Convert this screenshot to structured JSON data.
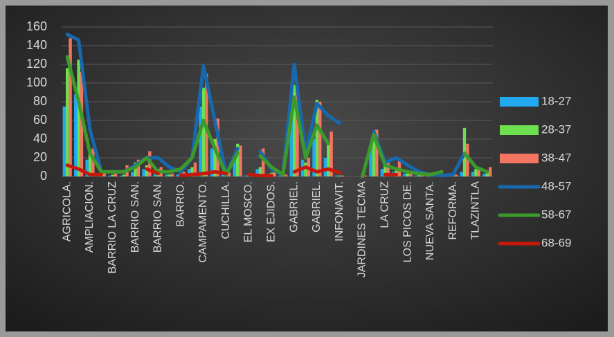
{
  "chart_data": {
    "type": "bar",
    "categories": [
      "AGRICOLA.",
      null,
      "AMPLIACION.",
      null,
      "BARRIO LA CRUZ",
      null,
      "BARRIO SAN.",
      null,
      "BARRIO SAN.",
      null,
      "BARRIO.",
      null,
      "CAMPAMENTO.",
      null,
      "CUCHILLA.",
      null,
      "EL MOSCO.",
      null,
      "EX EJIDOS.",
      null,
      "GABRIEL.",
      null,
      "GABRIEL.",
      null,
      "INFONAVIT.",
      null,
      "JARDINES TECMA",
      null,
      "LA CRUZ",
      null,
      "LOS PICOS DE.",
      null,
      "NUEVA SANTA.",
      null,
      "REFORMA.",
      null,
      "TLAZINTLA",
      null
    ],
    "series": [
      {
        "name": "18-27",
        "type": "bar",
        "color": "#22a9f0",
        "values": [
          75,
          88,
          18,
          2,
          1,
          1,
          5,
          8,
          5,
          2,
          2,
          8,
          75,
          30,
          2,
          20,
          1,
          8,
          3,
          1,
          65,
          18,
          40,
          20,
          1,
          0,
          0,
          30,
          8,
          5,
          3,
          1,
          1,
          1,
          1,
          5,
          5,
          3
        ]
      },
      {
        "name": "28-37",
        "type": "bar",
        "color": "#6ee04f",
        "values": [
          116,
          125,
          25,
          3,
          2,
          2,
          15,
          12,
          8,
          2,
          3,
          10,
          95,
          40,
          3,
          35,
          1,
          10,
          4,
          1,
          98,
          15,
          82,
          35,
          1,
          0,
          0,
          45,
          12,
          8,
          5,
          2,
          1,
          1,
          2,
          52,
          8,
          5
        ]
      },
      {
        "name": "38-47",
        "type": "bar",
        "color": "#f47560",
        "values": [
          148,
          112,
          30,
          4,
          3,
          12,
          18,
          27,
          10,
          3,
          5,
          15,
          110,
          62,
          4,
          33,
          2,
          30,
          5,
          2,
          95,
          20,
          80,
          48,
          1,
          0,
          1,
          50,
          15,
          17,
          5,
          2,
          1,
          2,
          2,
          35,
          10,
          10
        ]
      },
      {
        "name": "48-57",
        "type": "line",
        "color": "#1868ad",
        "values": [
          152,
          146,
          50,
          5,
          5,
          5,
          12,
          20,
          20,
          10,
          5,
          20,
          118,
          60,
          2,
          30,
          null,
          27,
          8,
          2,
          120,
          25,
          78,
          65,
          57,
          null,
          null,
          48,
          15,
          20,
          12,
          5,
          2,
          1,
          2,
          25,
          10,
          5
        ]
      },
      {
        "name": "58-67",
        "type": "line",
        "color": "#3c9a2c",
        "values": [
          128,
          80,
          25,
          5,
          5,
          5,
          10,
          20,
          5,
          5,
          8,
          20,
          60,
          30,
          2,
          25,
          null,
          22,
          10,
          2,
          85,
          20,
          55,
          35,
          null,
          null,
          0,
          45,
          12,
          8,
          5,
          3,
          2,
          5,
          null,
          25,
          10,
          5
        ]
      },
      {
        "name": "68-69",
        "type": "line",
        "color": "#c8170b",
        "values": [
          12,
          8,
          2,
          2,
          null,
          null,
          null,
          8,
          3,
          null,
          1,
          2,
          3,
          5,
          3,
          null,
          2,
          1,
          1,
          null,
          5,
          10,
          5,
          8,
          4,
          null,
          null,
          null,
          2,
          2,
          null,
          null,
          null,
          null,
          null,
          null,
          null,
          null
        ]
      }
    ],
    "ylim": [
      0,
      160
    ],
    "yticks": [
      0,
      20,
      40,
      60,
      80,
      100,
      120,
      140,
      160
    ],
    "grid": true,
    "legend": "right"
  }
}
